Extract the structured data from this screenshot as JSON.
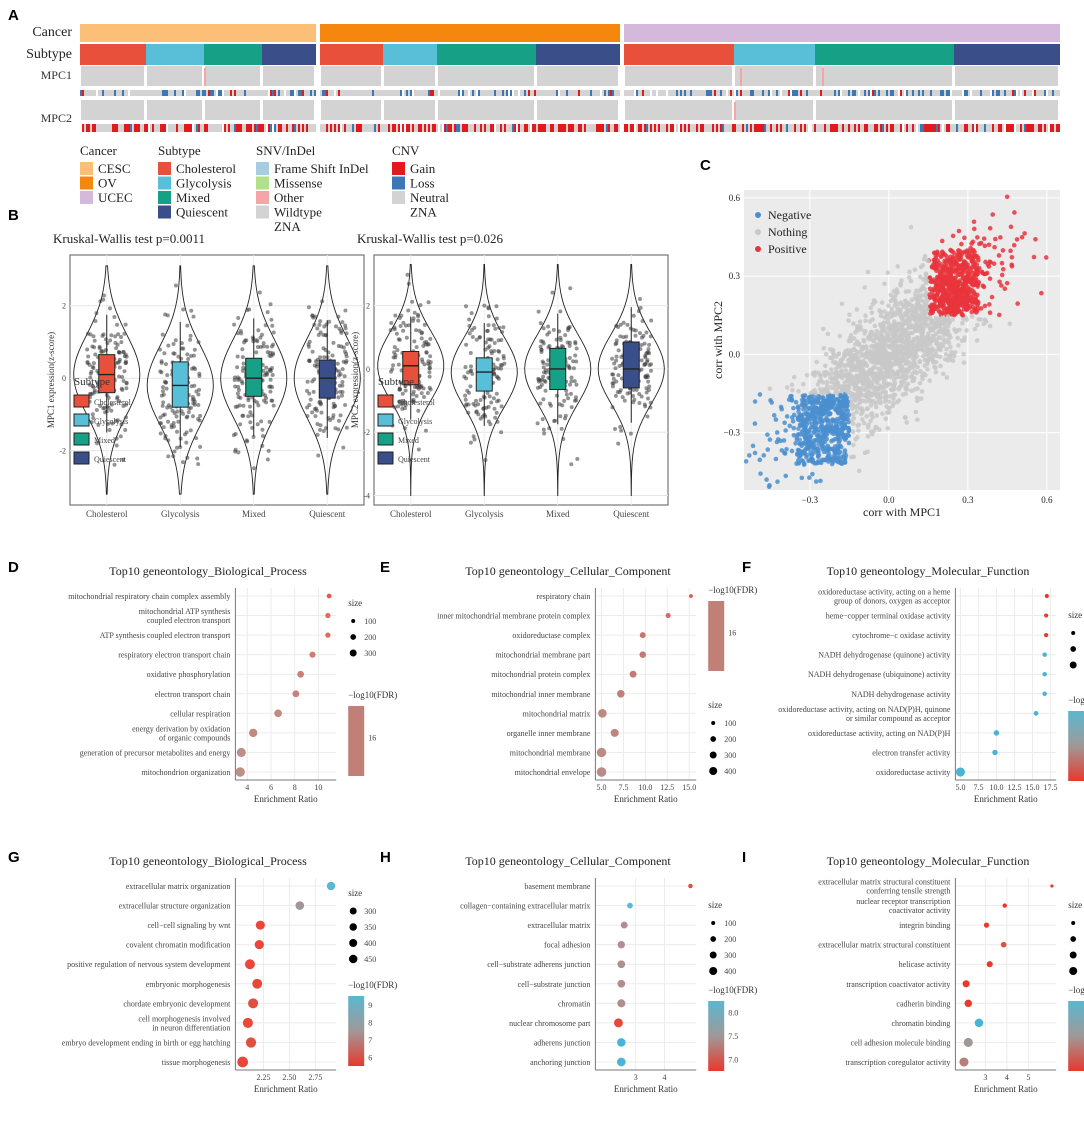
{
  "panels": {
    "A": "A",
    "B": "B",
    "C": "C",
    "D": "D",
    "E": "E",
    "F": "F",
    "G": "G",
    "H": "H",
    "I": "I"
  },
  "heatmap": {
    "row_labels": [
      "Cancer",
      "Subtype",
      "MPC1",
      "MPC2"
    ],
    "legends": [
      {
        "title": "Cancer",
        "items": [
          {
            "label": "CESC",
            "color": "#fbbf78"
          },
          {
            "label": "OV",
            "color": "#f5870f"
          },
          {
            "label": "UCEC",
            "color": "#d4b9dc"
          }
        ]
      },
      {
        "title": "Subtype",
        "items": [
          {
            "label": "Cholesterol",
            "color": "#e9503c"
          },
          {
            "label": "Glycolysis",
            "color": "#59bfd9"
          },
          {
            "label": "Mixed",
            "color": "#16a085"
          },
          {
            "label": "Quiescent",
            "color": "#3a4f89"
          }
        ]
      },
      {
        "title": "SNV/InDel",
        "items": [
          {
            "label": "Frame Shift InDel",
            "color": "#a6cee3"
          },
          {
            "label": "Missense",
            "color": "#b2df8a"
          },
          {
            "label": "Other",
            "color": "#f4a6a6"
          },
          {
            "label": "Wildtype",
            "color": "#d3d3d3"
          },
          {
            "label": "ZNA",
            "color": "#ffffff"
          }
        ]
      },
      {
        "title": "CNV",
        "items": [
          {
            "label": "Gain",
            "color": "#e31a1c"
          },
          {
            "label": "Loss",
            "color": "#3b78b5"
          },
          {
            "label": "Neutral",
            "color": "#d3d3d3"
          },
          {
            "label": "ZNA",
            "color": "#ffffff"
          }
        ]
      }
    ]
  },
  "violins": [
    {
      "title": "Kruskal-Wallis test p=0.0011",
      "ylabel": "MPC1 expression(z-score)",
      "categories": [
        "Cholesterol",
        "Glycolysis",
        "Mixed",
        "Quiescent"
      ],
      "medians": [
        0.1,
        -0.2,
        0.0,
        0.0
      ],
      "q1": [
        -0.4,
        -0.8,
        -0.5,
        -0.55
      ],
      "q3": [
        0.65,
        0.45,
        0.55,
        0.5
      ],
      "ylim": [
        -3.5,
        3.4
      ],
      "yticks": [
        -2,
        0,
        2
      ],
      "legend_title": "Subtype",
      "legend": [
        "Cholesterol",
        "Glycolysis",
        "Mixed",
        "Quiescent"
      ]
    },
    {
      "title": "Kruskal-Wallis test p=0.026",
      "ylabel": "MPC2 expression(z-score)",
      "categories": [
        "Cholesterol",
        "Glycolysis",
        "Mixed",
        "Quiescent"
      ],
      "medians": [
        0.1,
        -0.1,
        0.0,
        0.0
      ],
      "q1": [
        -0.5,
        -0.7,
        -0.65,
        -0.6
      ],
      "q3": [
        0.55,
        0.35,
        0.65,
        0.85
      ],
      "ylim": [
        -4.3,
        3.6
      ],
      "yticks": [
        -4,
        -2,
        0,
        2
      ],
      "legend_title": "Subtype",
      "legend": [
        "Cholesterol",
        "Glycolysis",
        "Mixed",
        "Quiescent"
      ]
    }
  ],
  "scatter": {
    "xlabel": "corr with MPC1",
    "ylabel": "corr with MPC2",
    "xlim": [
      -0.55,
      0.65
    ],
    "ylim": [
      -0.52,
      0.63
    ],
    "xticks": [
      "−0.3",
      "0.0",
      "0.3",
      "0.6"
    ],
    "xtick_vals": [
      -0.3,
      0.0,
      0.3,
      0.6
    ],
    "yticks": [
      "−0.3",
      "0.0",
      "0.3",
      "0.6"
    ],
    "ytick_vals": [
      -0.3,
      0.0,
      0.3,
      0.6
    ],
    "legend": [
      {
        "label": "Negative",
        "color": "#4a8fcf"
      },
      {
        "label": "Nothing",
        "color": "#c8c8c8"
      },
      {
        "label": "Positive",
        "color": "#e8343c"
      }
    ]
  },
  "size_label": "size",
  "fdr_label": "−log10(FDR)",
  "xlabel_enrich": "Enrichment Ratio",
  "chart_data": [
    {
      "type": "scatter",
      "panel": "D",
      "title": "Top10 geneontology_Biological_Process",
      "xlim": [
        3,
        11.5
      ],
      "xticks": [
        4,
        6,
        8,
        10
      ],
      "terms": [
        "mitochondrial respiratory chain complex assembly",
        "mitochondrial ATP synthesis\ncoupled electron transport",
        "ATP synthesis coupled electron transport",
        "respiratory electron transport chain",
        "oxidative phosphorylation",
        "electron transport chain",
        "cellular respiration",
        "energy derivation by oxidation\nof organic compounds",
        "generation of precursor metabolites and energy",
        "mitochondrion organization"
      ],
      "x": [
        10.9,
        10.8,
        10.8,
        9.5,
        8.5,
        8.1,
        6.6,
        4.5,
        3.5,
        3.4
      ],
      "size": [
        90,
        110,
        110,
        150,
        180,
        190,
        230,
        280,
        330,
        360
      ],
      "color": [
        "#e8564b",
        "#e06a5e",
        "#e06a5e",
        "#d07a70",
        "#c98078",
        "#c98078",
        "#c28a80",
        "#c08a82",
        "#bd8f86",
        "#bd8f86"
      ],
      "size_legend": [
        "100",
        "200",
        "300"
      ],
      "fdr_legend": [
        "16"
      ]
    },
    {
      "type": "scatter",
      "panel": "E",
      "title": "Top10 geneontology_Cellular_Component",
      "xlim": [
        4.3,
        15.8
      ],
      "xticks": [
        5.0,
        7.5,
        10.0,
        12.5,
        15.0
      ],
      "xticklabels": [
        "5.0",
        "7.5",
        "10.0",
        "12.5",
        "15.0"
      ],
      "terms": [
        "respiratory chain",
        "inner mitochondrial membrane protein complex",
        "oxidoreductase complex",
        "mitochondrial membrane part",
        "mitochondrial protein complex",
        "mitochondrial inner membrane",
        "mitochondrial matrix",
        "organelle inner membrane",
        "mitochondrial membrane",
        "mitochondrial envelope"
      ],
      "x": [
        15.2,
        12.6,
        9.7,
        9.7,
        8.6,
        7.2,
        5.1,
        6.5,
        5.0,
        5.0
      ],
      "size": [
        60,
        100,
        140,
        170,
        190,
        230,
        300,
        260,
        350,
        370
      ],
      "color": [
        "#e05a50",
        "#d46a60",
        "#c9756c",
        "#c47a72",
        "#c47a72",
        "#c08078",
        "#bd8a82",
        "#be867e",
        "#bb8c86",
        "#bb8c86"
      ],
      "size_legend": [
        "100",
        "200",
        "300",
        "400"
      ],
      "fdr_legend": [
        "16"
      ]
    },
    {
      "type": "scatter",
      "panel": "F",
      "title": "Top10 geneontology_Molecular_Function",
      "xlim": [
        4.3,
        18.3
      ],
      "xticks": [
        5.0,
        7.5,
        10.0,
        12.5,
        15.0,
        17.5
      ],
      "xticklabels": [
        "5.0",
        "7.5",
        "10.0",
        "12.5",
        "15.0",
        "17.5"
      ],
      "terms": [
        "oxidoreductase activity, acting on a heme\ngroup of donors, oxygen as acceptor",
        "heme−copper terminal oxidase activity",
        "cytochrome−c oxidase activity",
        "NADH dehydrogenase (quinone) activity",
        "NADH dehydrogenase (ubiquinone) activity",
        "NADH dehydrogenase activity",
        "oxidoreductase activity, acting on NAD(P)H, quinone\nor similar compound as acceptor",
        "oxidoreductase activity, acting on NAD(P)H",
        "electron transfer activity",
        "oxidoreductase activity"
      ],
      "x": [
        17.0,
        16.9,
        16.9,
        16.7,
        16.7,
        16.7,
        15.5,
        10.0,
        9.8,
        5.0
      ],
      "size": [
        70,
        70,
        70,
        80,
        80,
        80,
        90,
        120,
        120,
        330
      ],
      "color": [
        "#e8392d",
        "#e8392d",
        "#e8392d",
        "#4ab4d4",
        "#4ab4d4",
        "#4ab4d4",
        "#4ab4d4",
        "#4ab4d4",
        "#4ab4d4",
        "#4ab4d4"
      ],
      "size_legend": [
        "100",
        "200",
        "300"
      ],
      "fdr_legend": [
        "16",
        "14",
        "12",
        "10"
      ]
    },
    {
      "type": "scatter",
      "panel": "G",
      "title": "Top10 geneontology_Biological_Process",
      "xlim": [
        1.98,
        2.95
      ],
      "xticks": [
        2.25,
        2.5,
        2.75
      ],
      "xticklabels": [
        "2.25",
        "2.50",
        "2.75"
      ],
      "terms": [
        "extracellular matrix organization",
        "extracellular structure organization",
        "cell−cell signaling by wnt",
        "covalent chromatin modification",
        "positive regulation of nervous system development",
        "embryonic morphogenesis",
        "chordate embryonic development",
        "cell morphogenesis involved\nin neuron differentiation",
        "embryo development ending in birth or egg hatching",
        "tissue morphogenesis"
      ],
      "x": [
        2.9,
        2.6,
        2.22,
        2.21,
        2.12,
        2.19,
        2.15,
        2.1,
        2.13,
        2.05
      ],
      "size": [
        280,
        300,
        330,
        340,
        390,
        390,
        400,
        410,
        420,
        460
      ],
      "color": [
        "#5ab8d0",
        "#a09898",
        "#e8473a",
        "#e8473a",
        "#e8473a",
        "#e8473a",
        "#e05040",
        "#e84a3a",
        "#e05040",
        "#e8473a"
      ],
      "size_legend": [
        "300",
        "350",
        "400",
        "450"
      ],
      "fdr_legend": [
        "9",
        "8",
        "7",
        "6"
      ]
    },
    {
      "type": "scatter",
      "panel": "H",
      "title": "Top10 geneontology_Cellular_Component",
      "xlim": [
        1.6,
        5.1
      ],
      "xticks": [
        3,
        4
      ],
      "xticklabels": [
        "3",
        "4"
      ],
      "terms": [
        "basement membrane",
        "collagen−containing extracellular matrix",
        "extracellular matrix",
        "focal adhesion",
        "cell−substrate adherens junction",
        "cell−substrate junction",
        "chromatin",
        "nuclear chromosome part",
        "adherens junction",
        "anchoring junction"
      ],
      "x": [
        4.9,
        2.8,
        2.6,
        2.5,
        2.5,
        2.5,
        2.5,
        2.4,
        2.5,
        2.5
      ],
      "size": [
        80,
        130,
        190,
        220,
        240,
        240,
        260,
        320,
        290,
        300
      ],
      "color": [
        "#e05040",
        "#5cb8d4",
        "#b08e90",
        "#b08e90",
        "#b08e90",
        "#b08e90",
        "#b08e90",
        "#e8473a",
        "#4ab4d4",
        "#4ab4d4"
      ],
      "size_legend": [
        "100",
        "200",
        "300",
        "400"
      ],
      "fdr_legend": [
        "8.0",
        "7.5",
        "7.0"
      ]
    },
    {
      "type": "scatter",
      "panel": "I",
      "title": "Top10 geneontology_Molecular_Function",
      "xlim": [
        1.6,
        6.3
      ],
      "xticks": [
        3,
        4,
        5
      ],
      "xticklabels": [
        "3",
        "4",
        "5"
      ],
      "terms": [
        "extracellular matrix structural constituent\nconferring tensile strength",
        "nuclear receptor transcription\ncoactivator activity",
        "integrin binding",
        "extracellular matrix structural constituent",
        "helicase activity",
        "transcription coactivator activity",
        "cadherin binding",
        "chromatin binding",
        "cell adhesion molecule binding",
        "transcription coregulator activity"
      ],
      "x": [
        6.1,
        3.9,
        3.05,
        3.85,
        3.2,
        2.1,
        2.2,
        2.7,
        2.2,
        2.0
      ],
      "size": [
        40,
        80,
        110,
        130,
        150,
        200,
        220,
        290,
        330,
        330
      ],
      "color": [
        "#e8392d",
        "#e8392d",
        "#e8392d",
        "#e05040",
        "#e8392d",
        "#e8392d",
        "#e8392d",
        "#4ab4d4",
        "#a09898",
        "#b8807a"
      ],
      "size_legend": [
        "100",
        "200",
        "300",
        "400"
      ],
      "fdr_legend": [
        "16",
        "14",
        "12",
        "10",
        "8",
        "6"
      ]
    }
  ]
}
